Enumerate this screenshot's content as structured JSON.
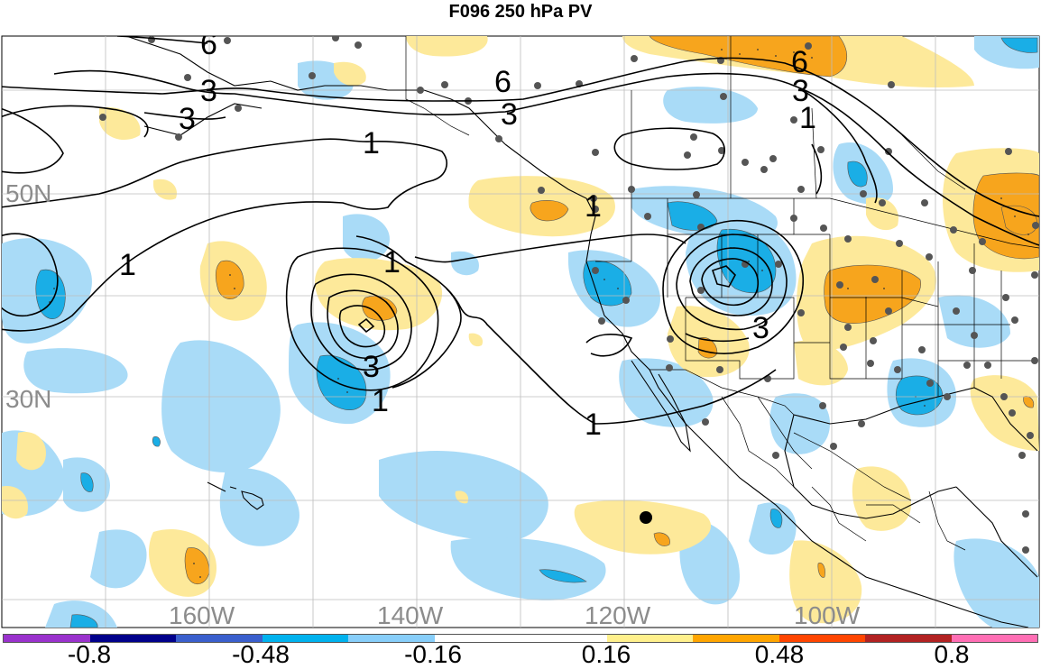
{
  "title": "F096 250 hPa PV",
  "lat_labels": [
    "50N",
    "30N"
  ],
  "lon_labels": [
    "160W",
    "140W",
    "120W",
    "100W"
  ],
  "contour_labels": [
    "6",
    "3",
    "3",
    "1",
    "1",
    "1",
    "1",
    "3",
    "1",
    "6",
    "3",
    "3",
    "1",
    "3",
    "6",
    "3",
    "1"
  ],
  "colorbar": {
    "colors": [
      "#9a32cd",
      "#00008b",
      "#3a5fcd",
      "#00b2ee",
      "#87cefa",
      "#ffffff",
      "#ffffff",
      "#fff08c",
      "#ffa500",
      "#ff4500",
      "#b22222",
      "#ff6eb4"
    ],
    "labels": [
      "-0.8",
      "-0.48",
      "-0.16",
      "0.16",
      "0.48",
      "0.8"
    ]
  },
  "colors": {
    "positive_light": "#fde99a",
    "positive_mid": "#f7a51d",
    "positive_dark": "#e67e0a",
    "negative_light": "#a9dbf7",
    "negative_mid": "#1aaee6",
    "grid": "#bdbdbd",
    "coast": "#000000",
    "station_dot": "#555555"
  }
}
